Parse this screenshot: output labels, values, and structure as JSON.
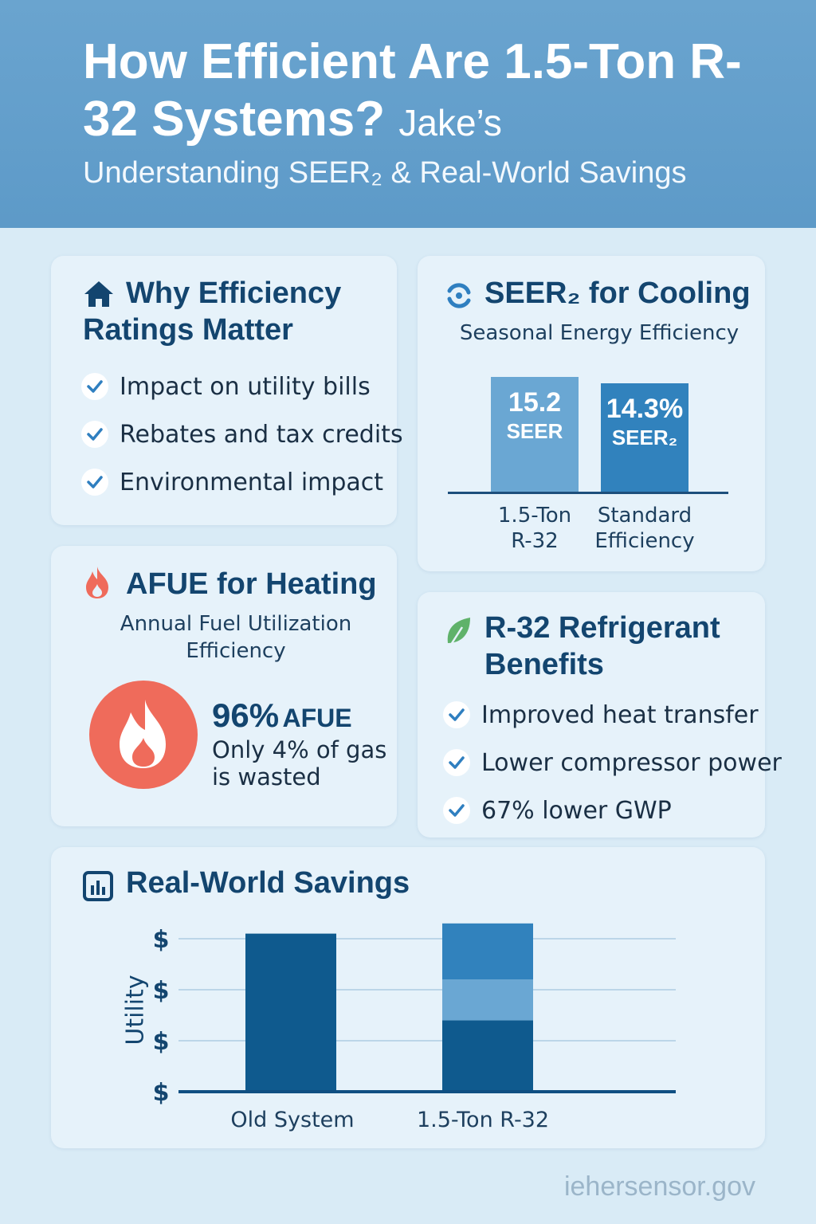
{
  "header": {
    "title": "How Efficient Are 1.5-Ton R-32 Systems?",
    "brand": "Jake’s",
    "subtitle": "Understanding SEER₂ & Real-World Savings"
  },
  "why": {
    "title": "Why Efficiency Ratings Matter",
    "icon": "house-icon",
    "items": [
      "Impact on utility bills",
      "Rebates and tax credits",
      "Environmental impact"
    ]
  },
  "seer": {
    "title": "SEER₂ for Cooling",
    "subtitle": "Seasonal Energy Efficiency",
    "icon": "refresh-icon",
    "chart_data": {
      "type": "bar",
      "categories": [
        "1.5-Ton R-32",
        "Standard Efficiency"
      ],
      "values": [
        15.2,
        14.3
      ],
      "value_labels": [
        "15.2",
        "14.3%"
      ],
      "unit_labels": [
        "SEER",
        "SEER₂"
      ],
      "xlabel": "",
      "ylabel": "",
      "colors": [
        "#6aa7d3",
        "#3182bd"
      ]
    }
  },
  "afue": {
    "title": "AFUE for Heating",
    "subtitle": "Annual Fuel Utilization Efficiency",
    "icon": "flame-icon",
    "value": "96%",
    "unit": "AFUE",
    "note": "Only 4% of gas is wasted",
    "color": "#ef6b5b"
  },
  "r32": {
    "title": "R-32 Refrigerant Benefits",
    "icon": "leaf-icon",
    "items": [
      "Improved heat transfer",
      "Lower compressor power",
      "67% lower GWP"
    ]
  },
  "savings": {
    "title": "Real-World Savings",
    "icon": "bar-chart-icon",
    "chart_data": {
      "type": "bar",
      "stacked": true,
      "categories": [
        "Old System",
        "1.5-Ton R-32"
      ],
      "ylabel": "Utility",
      "ytick_labels": [
        "$",
        "$",
        "$",
        "$"
      ],
      "ylim": [
        0,
        4
      ],
      "grid": true,
      "series": [
        {
          "values": [
            3.1,
            1.4
          ],
          "color": "#0f5a8e"
        },
        {
          "values": [
            0,
            0.8
          ],
          "color": "#6aa7d3"
        },
        {
          "values": [
            0,
            1.1
          ],
          "color": "#3182bd"
        }
      ]
    }
  },
  "footer": {
    "url": "iehersensor.gov"
  }
}
